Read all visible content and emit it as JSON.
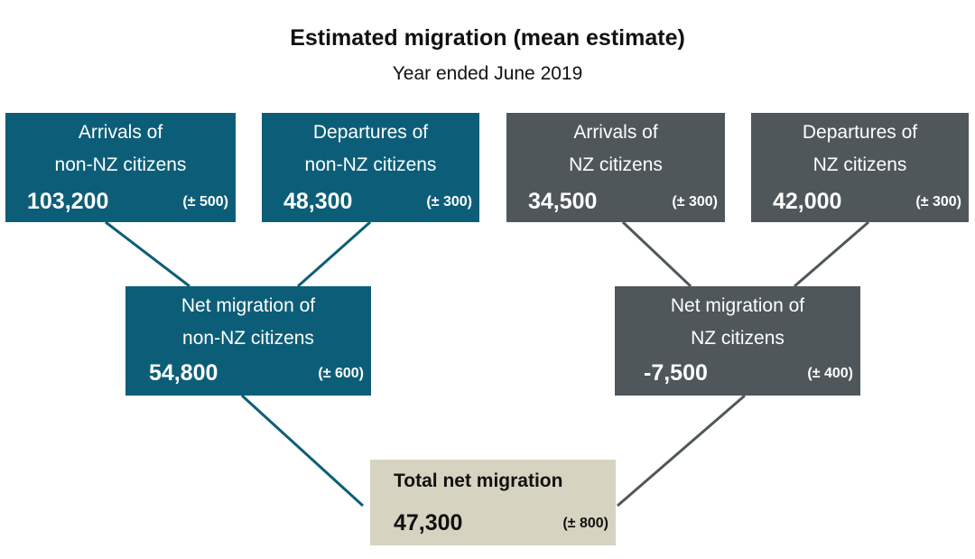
{
  "title": "Estimated migration (mean estimate)",
  "subtitle": "Year ended June 2019",
  "colors": {
    "non_nz": "#0c5e78",
    "nz": "#4f575a",
    "total": "#d6d4c0",
    "connector_non_nz": "#0c5e78",
    "connector_nz": "#4f575a"
  },
  "boxes": {
    "arrivals_non_nz": {
      "label_line1": "Arrivals of",
      "label_line2": "non-NZ citizens",
      "value": "103,200",
      "ci": "(± 500)"
    },
    "departures_non_nz": {
      "label_line1": "Departures of",
      "label_line2": "non-NZ citizens",
      "value": "48,300",
      "ci": "(± 300)"
    },
    "arrivals_nz": {
      "label_line1": "Arrivals of",
      "label_line2": "NZ citizens",
      "value": "34,500",
      "ci": "(± 300)"
    },
    "departures_nz": {
      "label_line1": "Departures of",
      "label_line2": "NZ citizens",
      "value": "42,000",
      "ci": "(± 300)"
    },
    "net_non_nz": {
      "label_line1": "Net migration of",
      "label_line2": "non-NZ citizens",
      "value": "54,800",
      "ci": "(± 600)"
    },
    "net_nz": {
      "label_line1": "Net migration of",
      "label_line2": "NZ citizens",
      "value": "-7,500",
      "ci": "(± 400)"
    },
    "total": {
      "label": "Total net migration",
      "value": "47,300",
      "ci": "(± 800)"
    }
  }
}
